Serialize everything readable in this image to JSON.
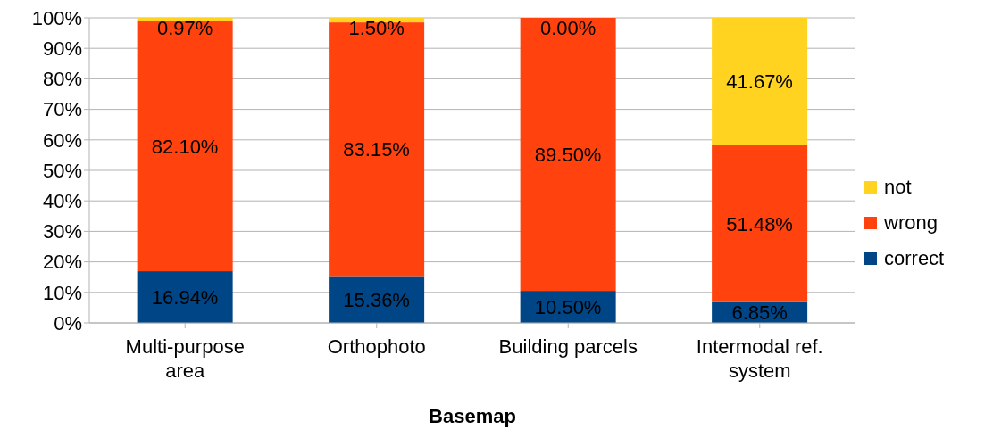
{
  "chart_data": {
    "type": "bar",
    "stacked": true,
    "xlabel": "Basemap",
    "categories": [
      "Multi-purpose area",
      "Orthophoto",
      "Building parcels",
      "Intermodal ref. system"
    ],
    "series": [
      {
        "name": "correct",
        "color": "#004586",
        "values": [
          16.94,
          15.36,
          10.5,
          6.85
        ],
        "value_labels": [
          "16.94%",
          "15.36%",
          "10.50%",
          "6.85%"
        ]
      },
      {
        "name": "wrong",
        "color": "#ff420e",
        "values": [
          82.1,
          83.15,
          89.5,
          51.48
        ],
        "value_labels": [
          "82.10%",
          "83.15%",
          "89.50%",
          "51.48%"
        ]
      },
      {
        "name": "not",
        "color": "#ffd320",
        "values": [
          0.97,
          1.5,
          0,
          41.67
        ],
        "value_labels": [
          "0.97%",
          "1.50%",
          "0.00%",
          "41.67%"
        ]
      }
    ],
    "ylim": [
      0,
      100
    ],
    "yticks": [
      {
        "value": 0,
        "label": "0%"
      },
      {
        "value": 10,
        "label": "10%"
      },
      {
        "value": 20,
        "label": "20%"
      },
      {
        "value": 30,
        "label": "30%"
      },
      {
        "value": 40,
        "label": "40%"
      },
      {
        "value": 50,
        "label": "50%"
      },
      {
        "value": 60,
        "label": "60%"
      },
      {
        "value": 70,
        "label": "70%"
      },
      {
        "value": 80,
        "label": "80%"
      },
      {
        "value": 90,
        "label": "90%"
      },
      {
        "value": 100,
        "label": "100%"
      }
    ],
    "grid": "y",
    "legend": "right"
  }
}
